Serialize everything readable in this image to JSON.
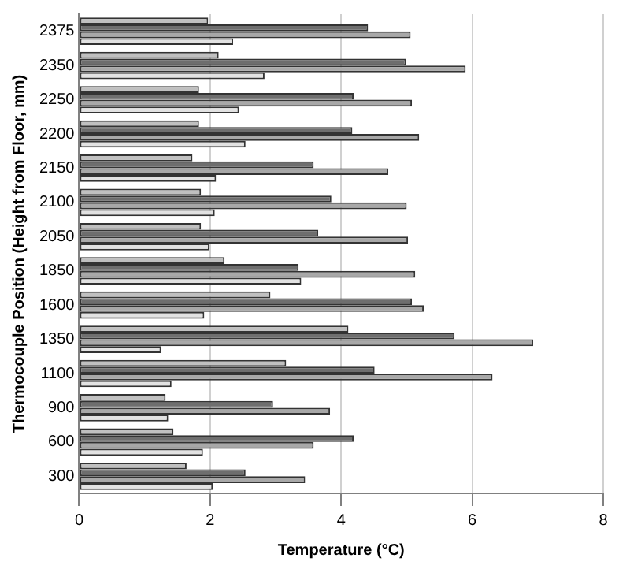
{
  "chart_data": {
    "type": "bar",
    "orientation": "horizontal",
    "xlabel": "Temperature (°C)",
    "ylabel": "Thermocouple Position (Height from Floor, mm)",
    "categories": [
      "2375",
      "2350",
      "2250",
      "2200",
      "2150",
      "2100",
      "2050",
      "1850",
      "1600",
      "1350",
      "1100",
      "900",
      "600",
      "300"
    ],
    "series": [
      {
        "color": "#c0c0c0",
        "values": [
          1.97,
          2.13,
          1.83,
          1.83,
          1.73,
          1.86,
          1.86,
          2.22,
          2.92,
          4.11,
          3.16,
          1.32,
          1.44,
          1.64
        ]
      },
      {
        "color": "#6e6e6e",
        "values": [
          4.41,
          4.99,
          4.19,
          4.17,
          3.58,
          3.85,
          3.65,
          3.35,
          5.08,
          5.73,
          4.51,
          2.96,
          4.19,
          2.54
        ]
      },
      {
        "color": "#a8a8a8",
        "values": [
          5.06,
          5.9,
          5.08,
          5.19,
          4.72,
          5.0,
          5.02,
          5.13,
          5.26,
          6.93,
          6.31,
          3.83,
          3.58,
          3.45
        ]
      },
      {
        "color": "#e2e2e2",
        "values": [
          2.35,
          2.83,
          2.44,
          2.54,
          2.09,
          2.07,
          1.99,
          3.39,
          1.91,
          1.25,
          1.41,
          1.36,
          1.89,
          2.04
        ]
      }
    ],
    "xlim": [
      0,
      8
    ],
    "xticks": [
      0,
      2,
      4,
      6,
      8
    ],
    "grid": "x",
    "legend": false
  }
}
